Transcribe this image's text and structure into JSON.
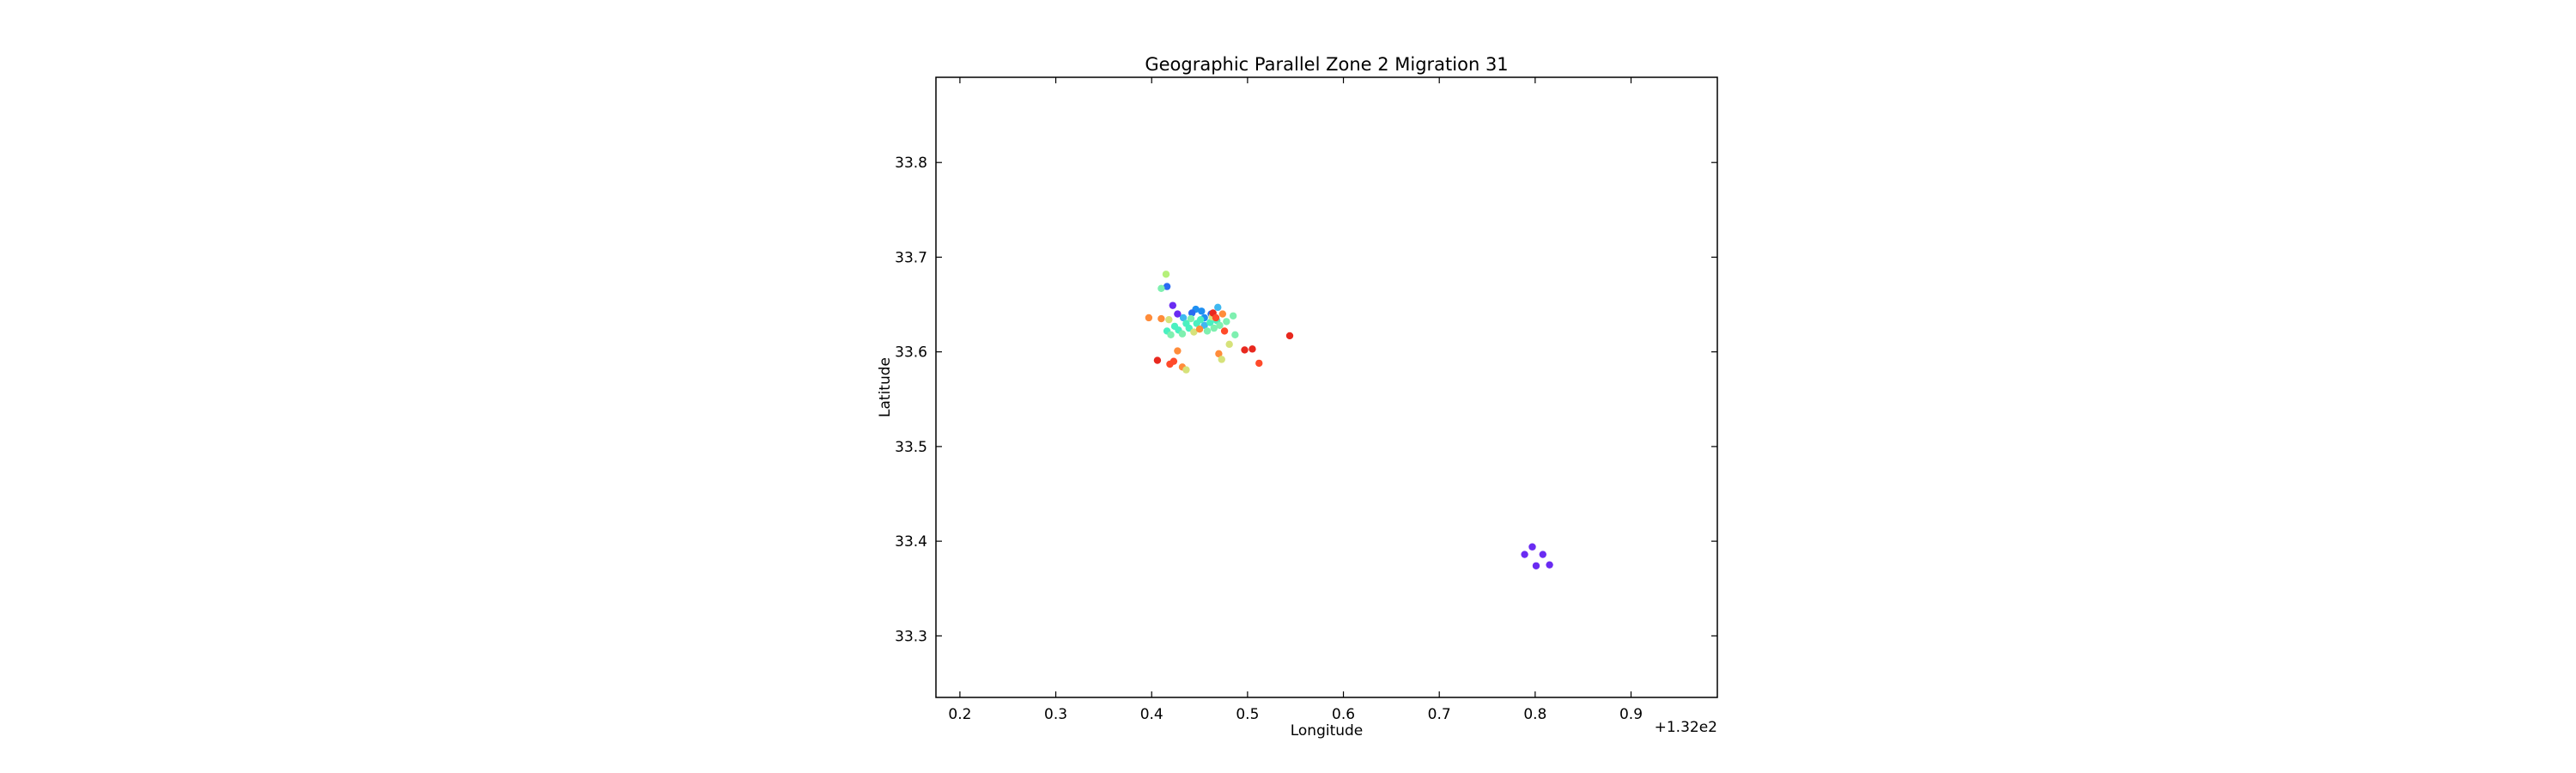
{
  "chart_data": {
    "type": "scatter",
    "title": "Geographic Parallel Zone 2 Migration 31",
    "xlabel": "Longitude",
    "ylabel": "Latitude",
    "x_offset_label": "+1.32e2",
    "xlim": [
      0.175,
      0.99
    ],
    "ylim": [
      33.235,
      33.89
    ],
    "xticks": [
      0.2,
      0.3,
      0.4,
      0.5,
      0.6,
      0.7,
      0.8,
      0.9
    ],
    "xtick_labels": [
      "0.2",
      "0.3",
      "0.4",
      "0.5",
      "0.6",
      "0.7",
      "0.8",
      "0.9"
    ],
    "yticks": [
      33.3,
      33.4,
      33.5,
      33.6,
      33.7,
      33.8
    ],
    "ytick_labels": [
      "33.3",
      "33.4",
      "33.5",
      "33.6",
      "33.7",
      "33.8"
    ],
    "grid": false,
    "legend": "none",
    "colormap": "rainbow",
    "points": [
      {
        "x": 0.789,
        "y": 33.386,
        "color": "#6a2bf2"
      },
      {
        "x": 0.797,
        "y": 33.394,
        "color": "#6a2bf2"
      },
      {
        "x": 0.808,
        "y": 33.386,
        "color": "#6a2bf2"
      },
      {
        "x": 0.801,
        "y": 33.374,
        "color": "#6a2bf2"
      },
      {
        "x": 0.815,
        "y": 33.375,
        "color": "#6a2bf2"
      },
      {
        "x": 0.416,
        "y": 33.669,
        "color": "#2a6af2"
      },
      {
        "x": 0.446,
        "y": 33.645,
        "color": "#1f8ff2"
      },
      {
        "x": 0.452,
        "y": 33.643,
        "color": "#1f8ff2"
      },
      {
        "x": 0.442,
        "y": 33.641,
        "color": "#2a6af2"
      },
      {
        "x": 0.462,
        "y": 33.64,
        "color": "#2a6af2"
      },
      {
        "x": 0.455,
        "y": 33.636,
        "color": "#1f8ff2"
      },
      {
        "x": 0.469,
        "y": 33.647,
        "color": "#3fb8f0"
      },
      {
        "x": 0.433,
        "y": 33.636,
        "color": "#3fb8f0"
      },
      {
        "x": 0.422,
        "y": 33.649,
        "color": "#6a2bf2"
      },
      {
        "x": 0.427,
        "y": 33.64,
        "color": "#6a2bf2"
      },
      {
        "x": 0.455,
        "y": 33.628,
        "color": "#3fb8f0"
      },
      {
        "x": 0.415,
        "y": 33.682,
        "color": "#b5f07a"
      },
      {
        "x": 0.41,
        "y": 33.667,
        "color": "#7ef0b0"
      },
      {
        "x": 0.41,
        "y": 33.635,
        "color": "#ff8c3a"
      },
      {
        "x": 0.397,
        "y": 33.636,
        "color": "#ff8c3a"
      },
      {
        "x": 0.418,
        "y": 33.634,
        "color": "#d6e27a"
      },
      {
        "x": 0.416,
        "y": 33.622,
        "color": "#4af0c0"
      },
      {
        "x": 0.42,
        "y": 33.618,
        "color": "#7ef0b0"
      },
      {
        "x": 0.424,
        "y": 33.627,
        "color": "#4af0c0"
      },
      {
        "x": 0.428,
        "y": 33.623,
        "color": "#4af0c0"
      },
      {
        "x": 0.432,
        "y": 33.619,
        "color": "#7ef0b0"
      },
      {
        "x": 0.436,
        "y": 33.63,
        "color": "#4af0c0"
      },
      {
        "x": 0.439,
        "y": 33.625,
        "color": "#4af0c0"
      },
      {
        "x": 0.441,
        "y": 33.635,
        "color": "#7ef0b0"
      },
      {
        "x": 0.444,
        "y": 33.621,
        "color": "#d6e27a"
      },
      {
        "x": 0.447,
        "y": 33.63,
        "color": "#4af0c0"
      },
      {
        "x": 0.45,
        "y": 33.624,
        "color": "#ff8c3a"
      },
      {
        "x": 0.451,
        "y": 33.634,
        "color": "#4af0c0"
      },
      {
        "x": 0.458,
        "y": 33.622,
        "color": "#7ef0b0"
      },
      {
        "x": 0.461,
        "y": 33.631,
        "color": "#4af0c0"
      },
      {
        "x": 0.463,
        "y": 33.637,
        "color": "#d6e27a"
      },
      {
        "x": 0.465,
        "y": 33.625,
        "color": "#7ef0b0"
      },
      {
        "x": 0.468,
        "y": 33.633,
        "color": "#4af0c0"
      },
      {
        "x": 0.471,
        "y": 33.628,
        "color": "#7ef0b0"
      },
      {
        "x": 0.474,
        "y": 33.64,
        "color": "#ff8c3a"
      },
      {
        "x": 0.476,
        "y": 33.622,
        "color": "#ff4a2a"
      },
      {
        "x": 0.478,
        "y": 33.632,
        "color": "#7ef0b0"
      },
      {
        "x": 0.485,
        "y": 33.638,
        "color": "#7ef0b0"
      },
      {
        "x": 0.487,
        "y": 33.618,
        "color": "#7ef0b0"
      },
      {
        "x": 0.481,
        "y": 33.608,
        "color": "#d6e27a"
      },
      {
        "x": 0.464,
        "y": 33.641,
        "color": "#e8281e"
      },
      {
        "x": 0.467,
        "y": 33.636,
        "color": "#ff4a2a"
      },
      {
        "x": 0.406,
        "y": 33.591,
        "color": "#e8281e"
      },
      {
        "x": 0.419,
        "y": 33.587,
        "color": "#ff4a2a"
      },
      {
        "x": 0.423,
        "y": 33.59,
        "color": "#ff4a2a"
      },
      {
        "x": 0.427,
        "y": 33.601,
        "color": "#ff8c3a"
      },
      {
        "x": 0.432,
        "y": 33.584,
        "color": "#ff8c3a"
      },
      {
        "x": 0.436,
        "y": 33.581,
        "color": "#d6e27a"
      },
      {
        "x": 0.47,
        "y": 33.598,
        "color": "#ff8c3a"
      },
      {
        "x": 0.473,
        "y": 33.592,
        "color": "#d6e27a"
      },
      {
        "x": 0.497,
        "y": 33.602,
        "color": "#e8281e"
      },
      {
        "x": 0.505,
        "y": 33.603,
        "color": "#e8281e"
      },
      {
        "x": 0.512,
        "y": 33.588,
        "color": "#ff4a2a"
      },
      {
        "x": 0.544,
        "y": 33.617,
        "color": "#e8281e"
      }
    ]
  }
}
